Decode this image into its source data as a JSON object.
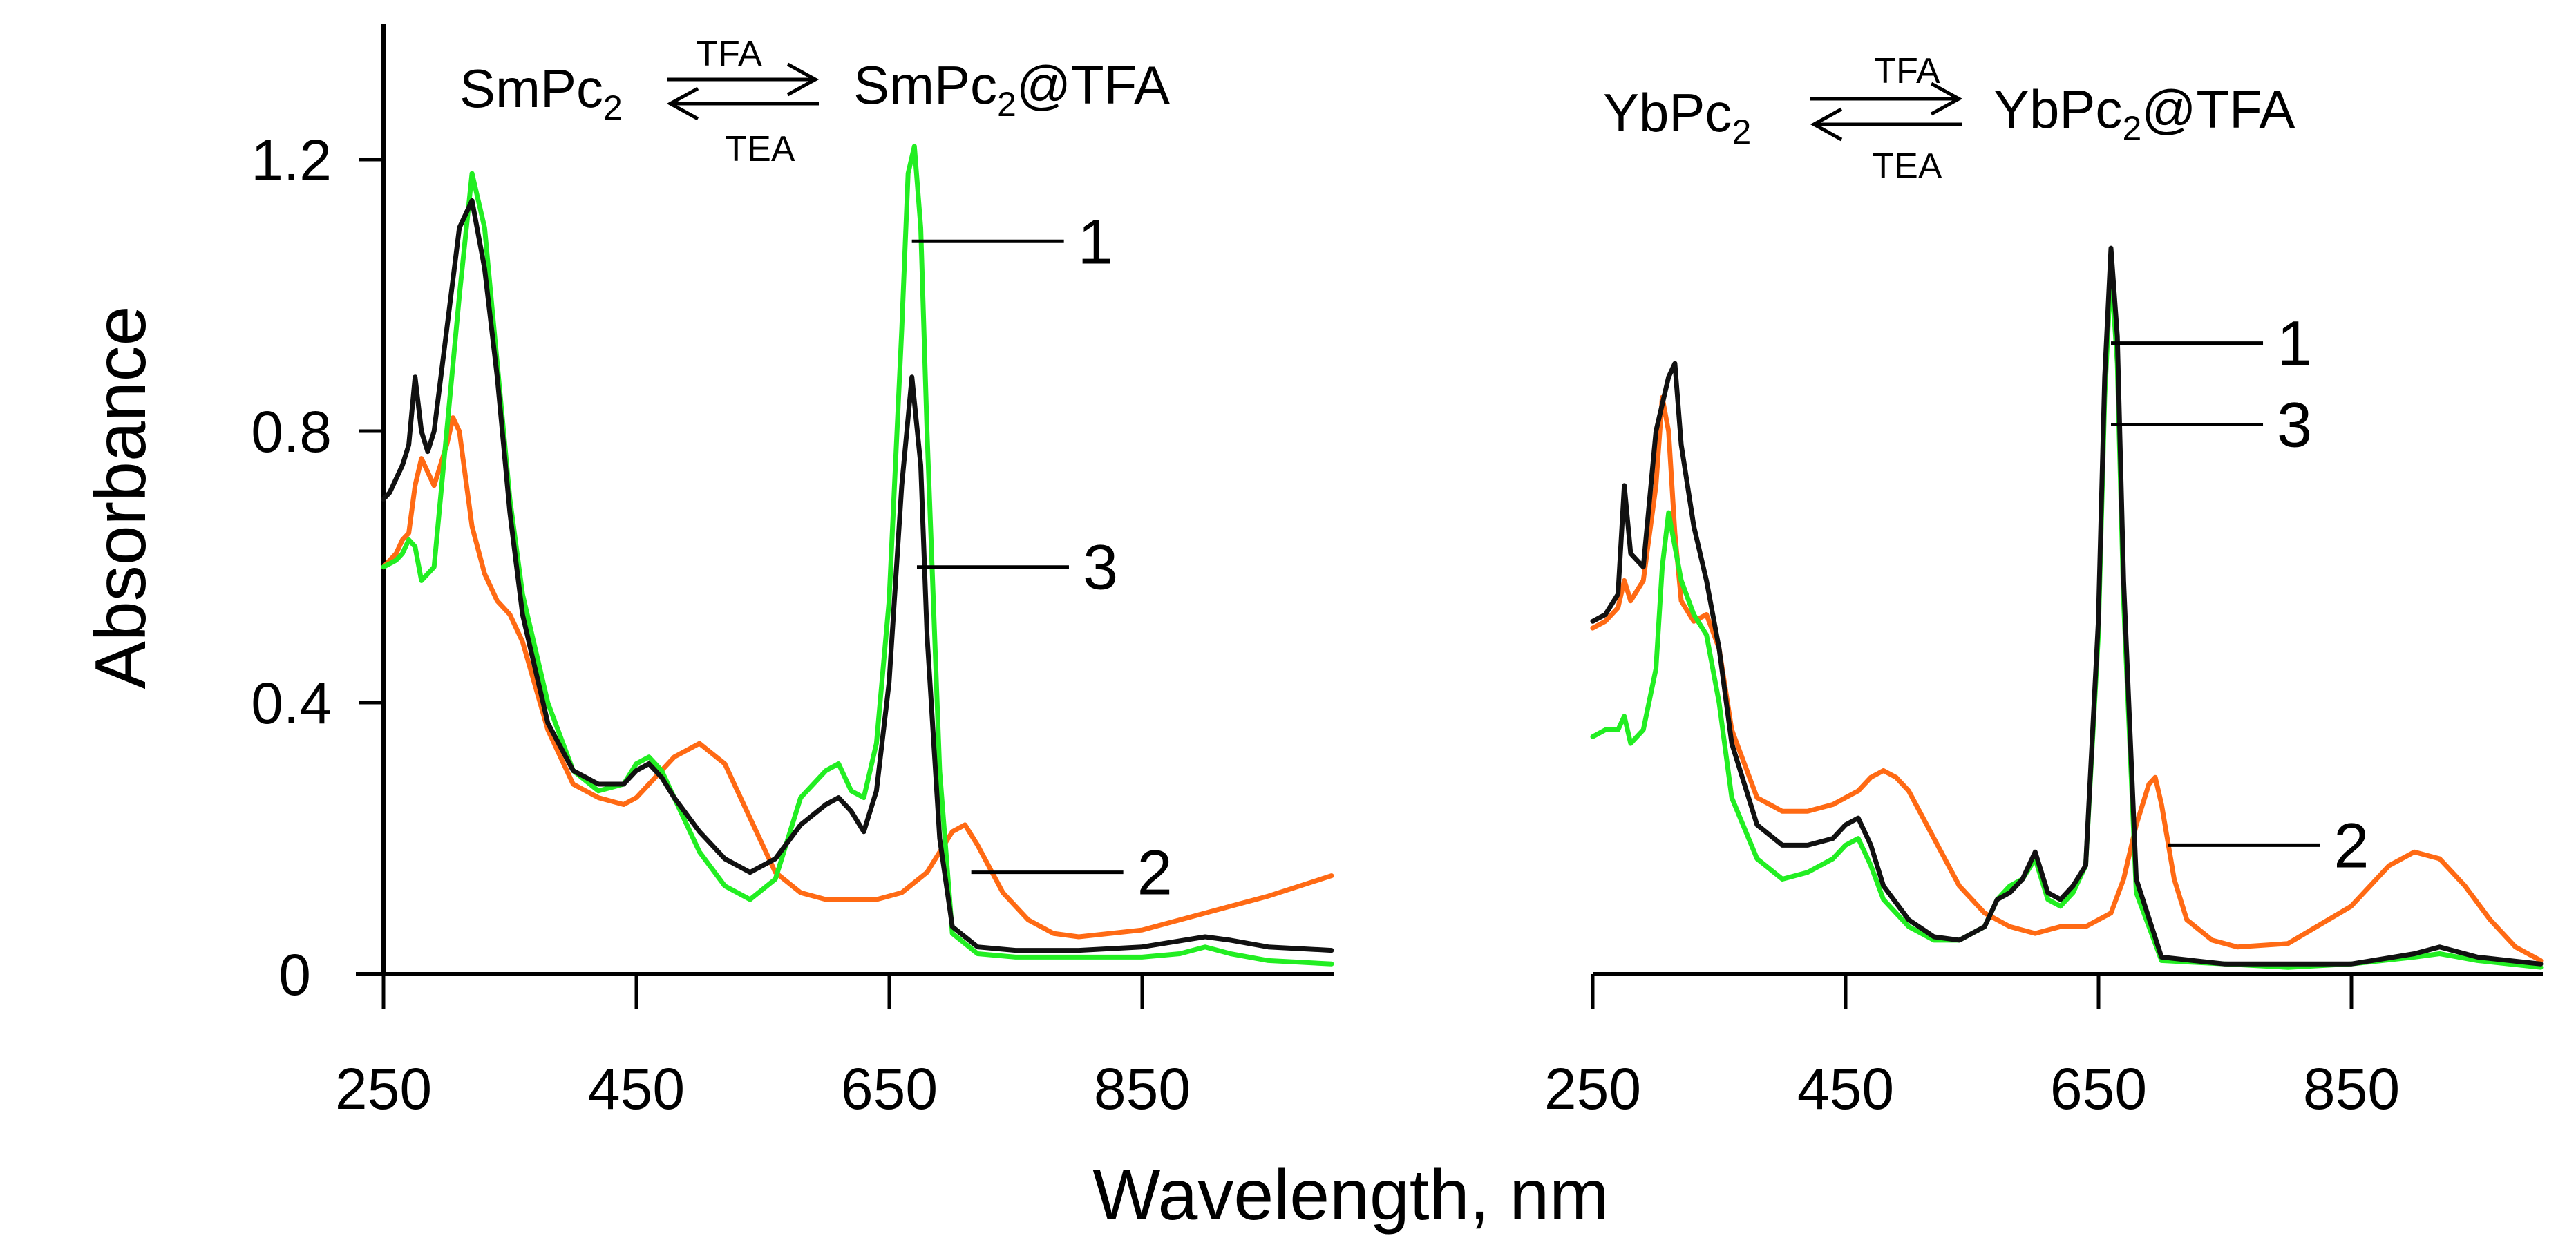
{
  "colors": {
    "curve_1": "#22ee22",
    "curve_2": "#ff6a14",
    "curve_3": "#111111",
    "axis": "#000000"
  },
  "chart_data": {
    "type": "line",
    "xlabel": "Wavelength, nm",
    "ylabel": "Absorbance",
    "xlim": [
      250,
      1000
    ],
    "ylim": [
      0,
      1.4
    ],
    "xticks": [
      "250",
      "450",
      "650",
      "850"
    ],
    "yticks": [
      "0",
      "0.4",
      "0.8",
      "1.2"
    ],
    "panels": [
      {
        "name": "SmPc2",
        "scheme": {
          "left_base": "SmPc",
          "left_sub": "2",
          "right_base": "SmPc",
          "right_sub": "2",
          "right_suffix": "@TFA",
          "forward": "TFA",
          "reverse": "TEA"
        },
        "labels": [
          {
            "text": "1",
            "lx": 668,
            "ly": 1.08
          },
          {
            "text": "3",
            "lx": 672,
            "ly": 0.6
          },
          {
            "text": "2",
            "lx": 715,
            "ly": 0.15
          }
        ],
        "series": [
          {
            "name": "1",
            "color_key": "curve_1",
            "x": [
              250,
              260,
              265,
              270,
              275,
              280,
              290,
              300,
              310,
              320,
              330,
              340,
              350,
              360,
              380,
              400,
              420,
              440,
              450,
              460,
              470,
              480,
              490,
              500,
              520,
              540,
              560,
              580,
              600,
              610,
              620,
              630,
              640,
              650,
              660,
              665,
              670,
              675,
              680,
              690,
              700,
              720,
              750,
              800,
              850,
              880,
              900,
              920,
              950,
              1000
            ],
            "y": [
              0.6,
              0.61,
              0.62,
              0.64,
              0.63,
              0.58,
              0.6,
              0.8,
              1.0,
              1.18,
              1.1,
              0.9,
              0.7,
              0.56,
              0.4,
              0.3,
              0.27,
              0.28,
              0.31,
              0.32,
              0.3,
              0.26,
              0.22,
              0.18,
              0.13,
              0.11,
              0.14,
              0.26,
              0.3,
              0.31,
              0.27,
              0.26,
              0.34,
              0.55,
              0.95,
              1.18,
              1.22,
              1.1,
              0.8,
              0.3,
              0.06,
              0.03,
              0.025,
              0.025,
              0.025,
              0.03,
              0.04,
              0.03,
              0.02,
              0.015
            ]
          },
          {
            "name": "2",
            "color_key": "curve_2",
            "x": [
              250,
              260,
              265,
              270,
              275,
              280,
              290,
              300,
              305,
              310,
              320,
              330,
              340,
              350,
              360,
              380,
              400,
              420,
              440,
              450,
              460,
              480,
              500,
              520,
              540,
              560,
              580,
              600,
              620,
              640,
              660,
              680,
              700,
              710,
              720,
              740,
              760,
              780,
              800,
              850,
              900,
              950,
              1000
            ],
            "y": [
              0.6,
              0.62,
              0.64,
              0.65,
              0.72,
              0.76,
              0.72,
              0.78,
              0.82,
              0.8,
              0.66,
              0.59,
              0.55,
              0.53,
              0.49,
              0.36,
              0.28,
              0.26,
              0.25,
              0.26,
              0.28,
              0.32,
              0.34,
              0.31,
              0.23,
              0.15,
              0.12,
              0.11,
              0.11,
              0.11,
              0.12,
              0.15,
              0.21,
              0.22,
              0.19,
              0.12,
              0.08,
              0.06,
              0.055,
              0.065,
              0.09,
              0.115,
              0.145
            ]
          },
          {
            "name": "3",
            "color_key": "curve_3",
            "x": [
              250,
              255,
              260,
              265,
              270,
              275,
              280,
              285,
              290,
              300,
              310,
              320,
              330,
              340,
              350,
              360,
              380,
              400,
              420,
              440,
              450,
              460,
              470,
              480,
              500,
              520,
              540,
              560,
              580,
              600,
              610,
              620,
              630,
              640,
              650,
              660,
              668,
              675,
              680,
              690,
              700,
              720,
              750,
              800,
              850,
              900,
              920,
              950,
              1000
            ],
            "y": [
              0.7,
              0.71,
              0.73,
              0.75,
              0.78,
              0.88,
              0.8,
              0.77,
              0.8,
              0.95,
              1.1,
              1.14,
              1.04,
              0.88,
              0.68,
              0.53,
              0.37,
              0.3,
              0.28,
              0.28,
              0.3,
              0.31,
              0.29,
              0.26,
              0.21,
              0.17,
              0.15,
              0.17,
              0.22,
              0.25,
              0.26,
              0.24,
              0.21,
              0.27,
              0.43,
              0.72,
              0.88,
              0.75,
              0.5,
              0.2,
              0.07,
              0.04,
              0.035,
              0.035,
              0.04,
              0.055,
              0.05,
              0.04,
              0.035
            ]
          }
        ]
      },
      {
        "name": "YbPc2",
        "scheme": {
          "left_base": "YbPc",
          "left_sub": "2",
          "right_base": "YbPc",
          "right_sub": "2",
          "right_suffix": "@TFA",
          "forward": "TFA",
          "reverse": "TEA"
        },
        "labels": [
          {
            "text": "1",
            "lx": 660,
            "ly": 0.93
          },
          {
            "text": "3",
            "lx": 660,
            "ly": 0.81
          },
          {
            "text": "2",
            "lx": 705,
            "ly": 0.19
          }
        ],
        "series": [
          {
            "name": "1",
            "color_key": "curve_1",
            "x": [
              250,
              260,
              270,
              275,
              280,
              290,
              300,
              305,
              310,
              320,
              330,
              340,
              350,
              360,
              380,
              400,
              420,
              440,
              450,
              460,
              470,
              480,
              500,
              520,
              540,
              560,
              570,
              580,
              590,
              600,
              610,
              620,
              630,
              640,
              650,
              655,
              660,
              665,
              670,
              680,
              700,
              750,
              800,
              850,
              900,
              920,
              950,
              1000
            ],
            "y": [
              0.35,
              0.36,
              0.36,
              0.38,
              0.34,
              0.36,
              0.45,
              0.6,
              0.68,
              0.58,
              0.53,
              0.5,
              0.4,
              0.26,
              0.17,
              0.14,
              0.15,
              0.17,
              0.19,
              0.2,
              0.16,
              0.11,
              0.07,
              0.05,
              0.05,
              0.07,
              0.11,
              0.13,
              0.14,
              0.17,
              0.11,
              0.1,
              0.12,
              0.16,
              0.5,
              0.85,
              1.04,
              0.9,
              0.55,
              0.12,
              0.02,
              0.015,
              0.01,
              0.015,
              0.025,
              0.03,
              0.02,
              0.01
            ]
          },
          {
            "name": "2",
            "color_key": "curve_2",
            "x": [
              250,
              260,
              270,
              275,
              280,
              290,
              300,
              305,
              310,
              315,
              320,
              330,
              340,
              350,
              360,
              380,
              400,
              420,
              440,
              450,
              460,
              470,
              480,
              490,
              500,
              520,
              540,
              560,
              580,
              600,
              620,
              640,
              660,
              670,
              680,
              690,
              695,
              700,
              710,
              720,
              740,
              760,
              800,
              850,
              880,
              900,
              920,
              940,
              960,
              980,
              1000
            ],
            "y": [
              0.51,
              0.52,
              0.54,
              0.58,
              0.55,
              0.58,
              0.72,
              0.85,
              0.8,
              0.65,
              0.55,
              0.52,
              0.53,
              0.48,
              0.36,
              0.26,
              0.24,
              0.24,
              0.25,
              0.26,
              0.27,
              0.29,
              0.3,
              0.29,
              0.27,
              0.2,
              0.13,
              0.09,
              0.07,
              0.06,
              0.07,
              0.07,
              0.09,
              0.14,
              0.22,
              0.28,
              0.29,
              0.25,
              0.14,
              0.08,
              0.05,
              0.04,
              0.045,
              0.1,
              0.16,
              0.18,
              0.17,
              0.13,
              0.08,
              0.04,
              0.02
            ]
          },
          {
            "name": "3",
            "color_key": "curve_3",
            "x": [
              250,
              260,
              270,
              275,
              280,
              290,
              300,
              310,
              315,
              320,
              330,
              340,
              350,
              360,
              380,
              400,
              420,
              440,
              450,
              460,
              470,
              480,
              500,
              520,
              540,
              560,
              570,
              580,
              590,
              600,
              610,
              620,
              630,
              640,
              650,
              655,
              660,
              665,
              670,
              680,
              700,
              750,
              800,
              850,
              900,
              920,
              950,
              1000
            ],
            "y": [
              0.52,
              0.53,
              0.56,
              0.72,
              0.62,
              0.6,
              0.8,
              0.88,
              0.9,
              0.78,
              0.66,
              0.58,
              0.48,
              0.34,
              0.22,
              0.19,
              0.19,
              0.2,
              0.22,
              0.23,
              0.19,
              0.13,
              0.08,
              0.055,
              0.05,
              0.07,
              0.11,
              0.12,
              0.14,
              0.18,
              0.12,
              0.11,
              0.13,
              0.16,
              0.52,
              0.88,
              1.07,
              0.94,
              0.58,
              0.14,
              0.025,
              0.015,
              0.015,
              0.015,
              0.03,
              0.04,
              0.025,
              0.015
            ]
          }
        ]
      }
    ]
  }
}
